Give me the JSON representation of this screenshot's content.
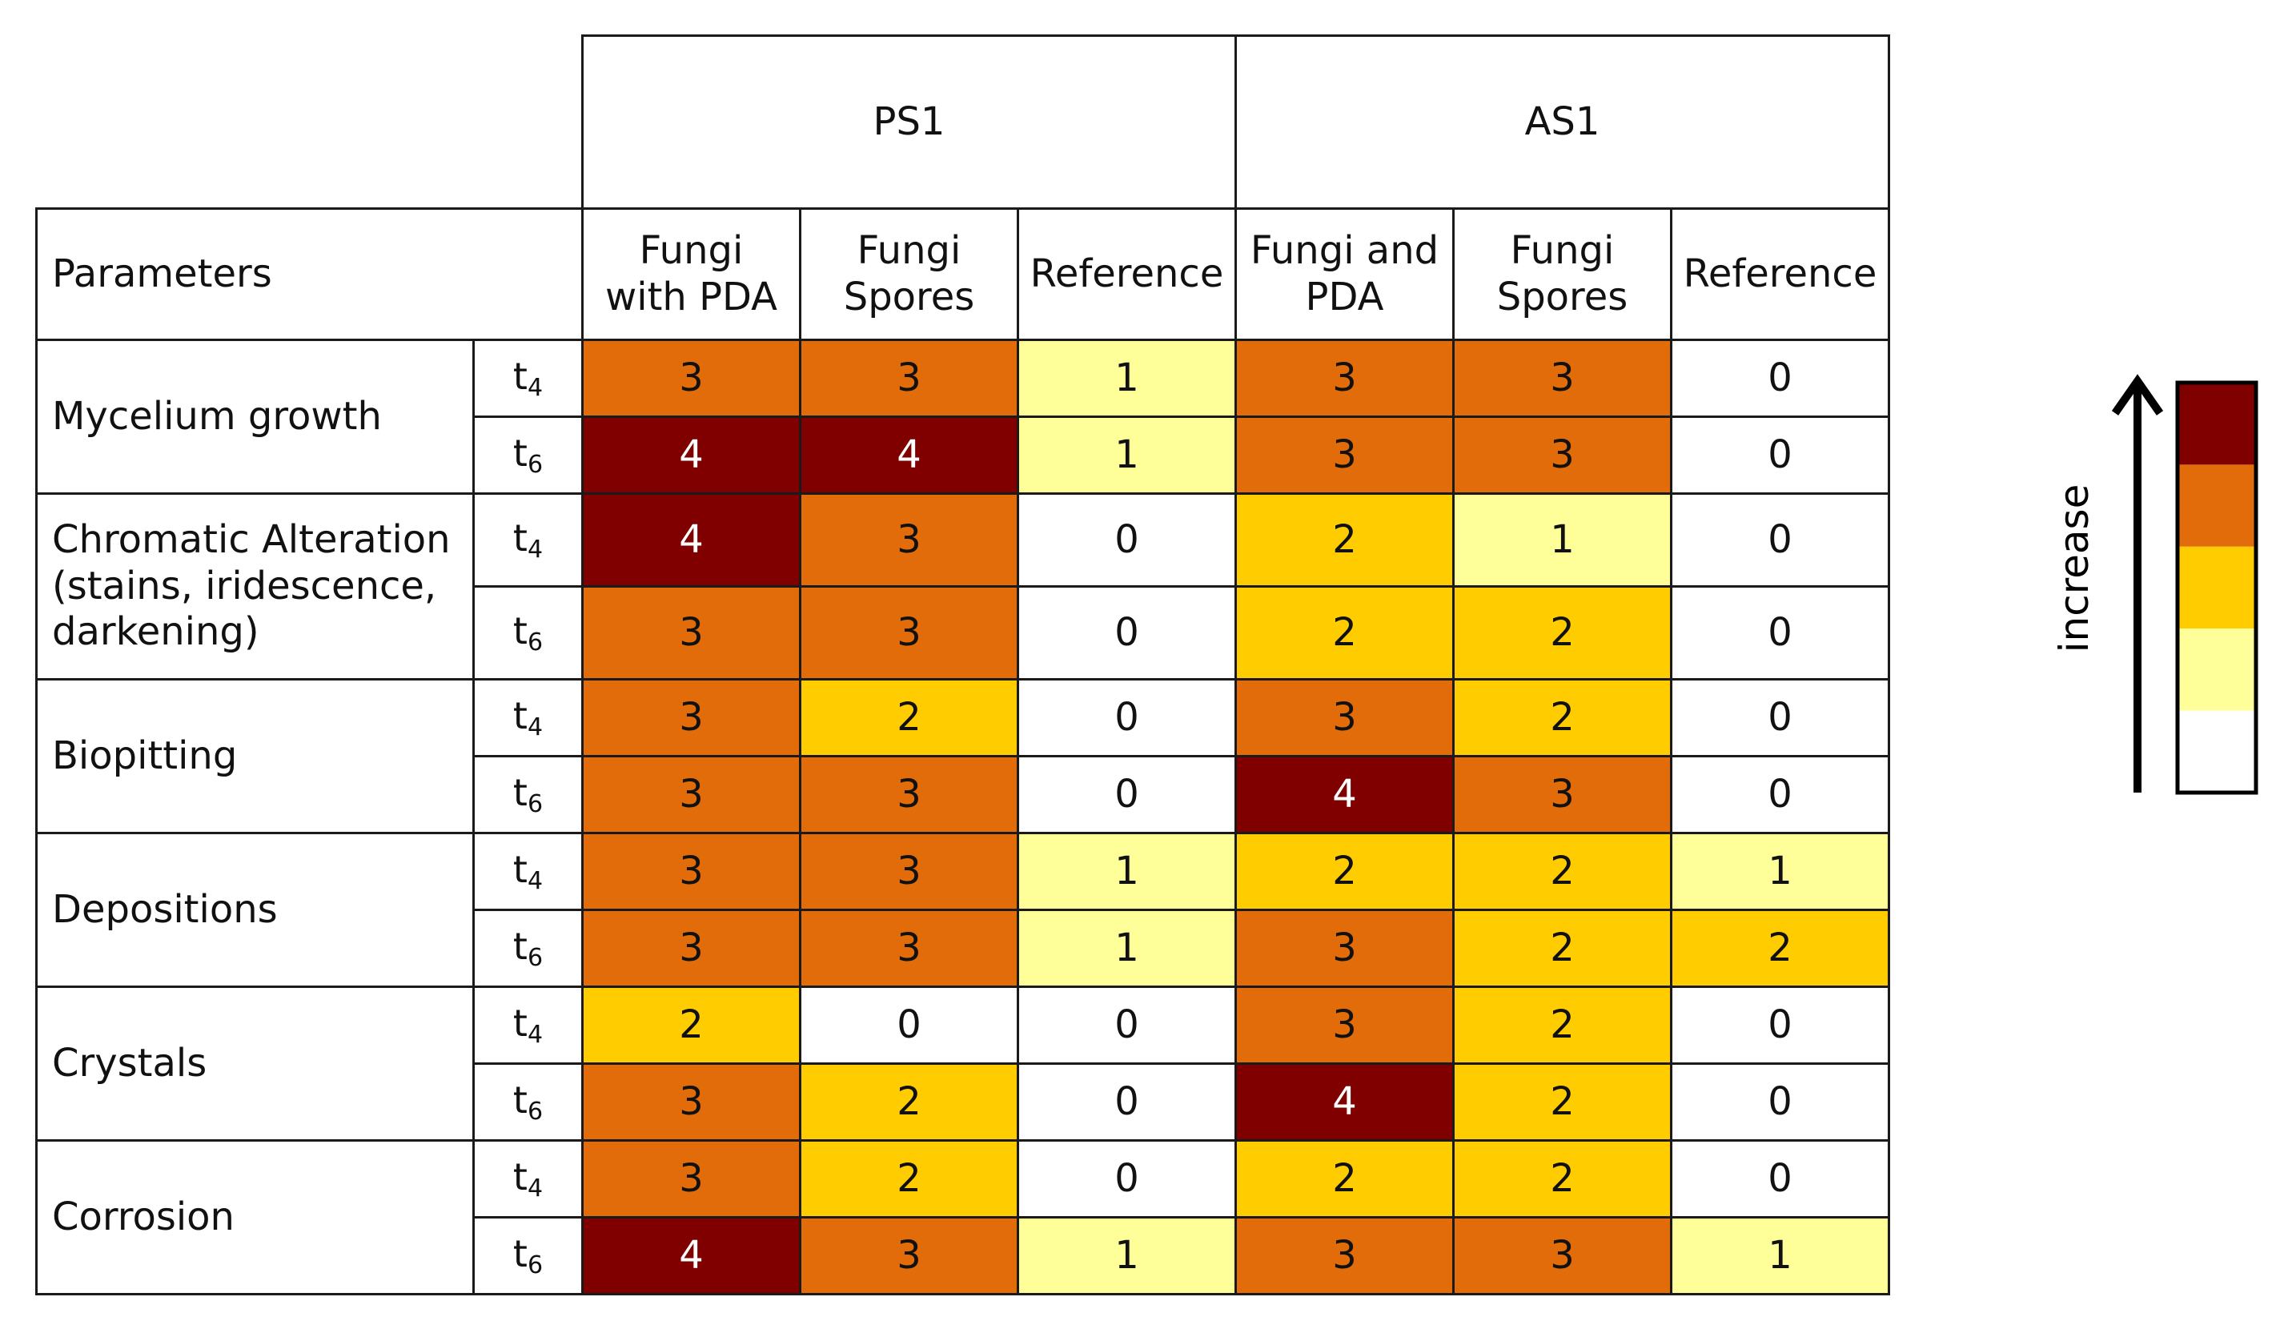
{
  "chart_data": {
    "type": "table",
    "group_headers": [
      {
        "label": "PS1"
      },
      {
        "label": "AS1"
      }
    ],
    "header_parameters": "Parameters",
    "column_headers": [
      {
        "line1": "Fungi",
        "line2": "with PDA"
      },
      {
        "line1": "Fungi",
        "line2": "Spores"
      },
      {
        "line1": "Reference",
        "line2": ""
      },
      {
        "line1": "Fungi and",
        "line2": "PDA"
      },
      {
        "line1": "Fungi",
        "line2": "Spores"
      },
      {
        "line1": "Reference",
        "line2": ""
      }
    ],
    "time_base": "t",
    "parameters": [
      {
        "lines": [
          "Mycelium growth"
        ],
        "rows": [
          {
            "time_sub": "4",
            "values": [
              3,
              3,
              1,
              3,
              3,
              0
            ]
          },
          {
            "time_sub": "6",
            "values": [
              4,
              4,
              1,
              3,
              3,
              0
            ]
          }
        ]
      },
      {
        "lines": [
          "Chromatic Alteration",
          "(stains, iridescence,",
          "darkening)"
        ],
        "rows": [
          {
            "time_sub": "4",
            "values": [
              4,
              3,
              0,
              2,
              1,
              0
            ]
          },
          {
            "time_sub": "6",
            "values": [
              3,
              3,
              0,
              2,
              2,
              0
            ]
          }
        ]
      },
      {
        "lines": [
          "Biopitting"
        ],
        "rows": [
          {
            "time_sub": "4",
            "values": [
              3,
              2,
              0,
              3,
              2,
              0
            ]
          },
          {
            "time_sub": "6",
            "values": [
              3,
              3,
              0,
              4,
              3,
              0
            ]
          }
        ]
      },
      {
        "lines": [
          "Depositions"
        ],
        "rows": [
          {
            "time_sub": "4",
            "values": [
              3,
              3,
              1,
              2,
              2,
              1
            ]
          },
          {
            "time_sub": "6",
            "values": [
              3,
              3,
              1,
              3,
              2,
              2
            ]
          }
        ]
      },
      {
        "lines": [
          "Crystals"
        ],
        "rows": [
          {
            "time_sub": "4",
            "values": [
              2,
              0,
              0,
              3,
              2,
              0
            ]
          },
          {
            "time_sub": "6",
            "values": [
              3,
              2,
              0,
              4,
              2,
              0
            ]
          }
        ]
      },
      {
        "lines": [
          "Corrosion"
        ],
        "rows": [
          {
            "time_sub": "4",
            "values": [
              3,
              2,
              0,
              2,
              2,
              0
            ]
          },
          {
            "time_sub": "6",
            "values": [
              4,
              3,
              1,
              3,
              3,
              1
            ]
          }
        ]
      }
    ],
    "color_scale": {
      "0": "#ffffff",
      "1": "#ffff99",
      "2": "#ffcc00",
      "3": "#e26b0a",
      "4": "#800000"
    },
    "legend": {
      "label": "increase",
      "levels_low_to_high": [
        0,
        1,
        2,
        3,
        4
      ]
    }
  }
}
